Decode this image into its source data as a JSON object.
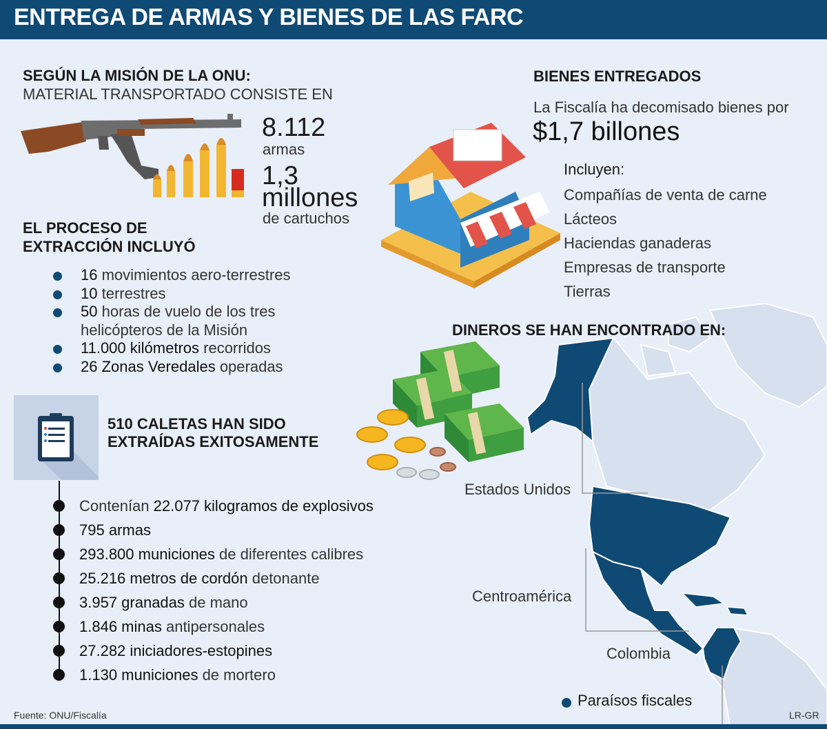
{
  "header": {
    "title": "ENTREGA DE ARMAS Y BIENES DE LAS FARC"
  },
  "onu": {
    "heading": "SEGÚN LA MISIÓN DE LA ONU:",
    "subheading": "MATERIAL TRANSPORTADO CONSISTE EN",
    "arms_value": "8.112",
    "arms_unit": "armas",
    "cartridges_value_1": "1,3",
    "cartridges_value_2": "millones",
    "cartridges_unit": "de cartuchos"
  },
  "proceso": {
    "heading_1": "EL PROCESO DE",
    "heading_2": "EXTRACCIÓN INCLUYÓ",
    "items": [
      {
        "strong": "16",
        "rest": " movimientos aero-terrestres"
      },
      {
        "strong": "10",
        "rest": " terrestres"
      },
      {
        "strong": "50",
        "rest": " horas de vuelo de los tres helicópteros de la Misión"
      },
      {
        "strong": "11.000 kilómetros",
        "rest": " recorridos"
      },
      {
        "strong": "26 Zonas Veredales",
        "rest": " operadas"
      }
    ]
  },
  "caletas": {
    "heading_1": "510 CALETAS HAN SIDO",
    "heading_2": "EXTRAÍDAS EXITOSAMENTE",
    "items": [
      {
        "pre": "Contenían ",
        "strong": "22.077 kilogramos de explosivos",
        "rest": ""
      },
      {
        "pre": "",
        "strong": "795 armas",
        "rest": ""
      },
      {
        "pre": "",
        "strong": "293.800 municiones",
        "rest": " de diferentes calibres"
      },
      {
        "pre": "",
        "strong": "25.216 metros de cordón",
        "rest": " detonante"
      },
      {
        "pre": "",
        "strong": "3.957 granadas",
        "rest": " de mano"
      },
      {
        "pre": "",
        "strong": "1.846 minas",
        "rest": " antipersonales"
      },
      {
        "pre": "",
        "strong": "27.282 iniciadores-estopines",
        "rest": ""
      },
      {
        "pre": "",
        "strong": "1.130 municiones",
        "rest": " de mortero"
      }
    ]
  },
  "bienes": {
    "heading": "BIENES ENTREGADOS",
    "intro": "La Fiscalía ha decomisado bienes por",
    "amount": "$1,7 billones",
    "includes_label": "Incluyen:",
    "items": [
      "Compañías de venta de carne",
      "Lácteos",
      "Haciendas ganaderas",
      "Empresas de transporte",
      "Tierras"
    ]
  },
  "dineros": {
    "heading": "DINEROS SE HAN ENCONTRADO EN:",
    "labels": {
      "usa": "Estados Unidos",
      "centro": "Centroamérica",
      "colombia": "Colombia"
    },
    "legend": "Paraísos fiscales"
  },
  "footer": {
    "source": "Fuente: ONU/Fiscalía",
    "credit": "LR-GR"
  },
  "colors": {
    "navy": "#0f4a75",
    "background": "#e9eff8",
    "map_land": "#d7e0ee"
  },
  "icons": [
    "rifle-icon",
    "bullets-icon",
    "house-shop-icon",
    "clipboard-icon",
    "money-stack-icon",
    "coins-icon",
    "americas-map-icon"
  ]
}
